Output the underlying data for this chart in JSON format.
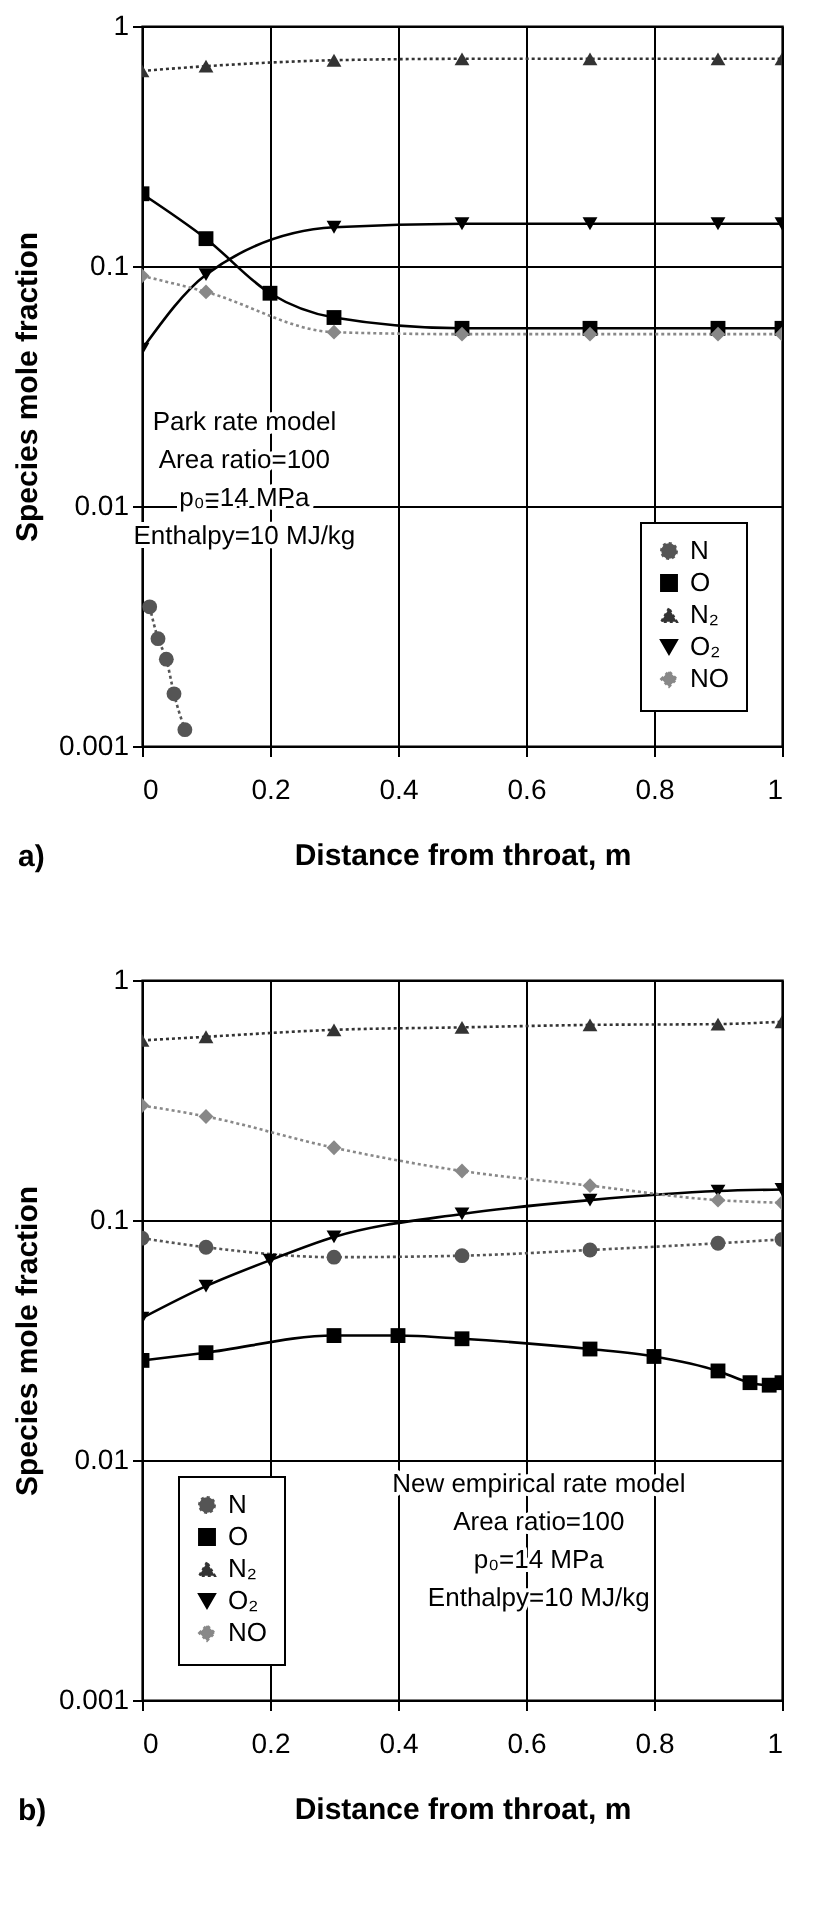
{
  "chart_data": [
    {
      "type": "line",
      "xlabel": "Distance from throat, m",
      "ylabel": "Species mole fraction",
      "log": "y",
      "grid": true,
      "legend": "bottom right",
      "xlim": [
        0,
        1
      ],
      "xticks": [
        0,
        0.2,
        0.4,
        0.6,
        0.8,
        1
      ],
      "ylim": [
        0.001,
        1
      ],
      "yticks": [
        0.001,
        0.01,
        0.1,
        1
      ],
      "annotations": [
        "Park rate model",
        "Area ratio=100",
        "p₀=14 MPa",
        "Enthalpy=10 MJ/kg",
        "a)"
      ],
      "series": [
        {
          "name": "N",
          "color": "#555555",
          "marker": "circle",
          "line_style": "dotted",
          "x": [
            0.012,
            0.025,
            0.038,
            0.05,
            0.067
          ],
          "values": [
            0.0038,
            0.0028,
            0.0023,
            0.00165,
            0.00117
          ]
        },
        {
          "name": "O",
          "color": "#000000",
          "marker": "square",
          "line_style": "solid",
          "x": [
            0,
            0.1,
            0.2,
            0.3,
            0.5,
            0.7,
            0.9,
            1
          ],
          "values": [
            0.2,
            0.13,
            0.077,
            0.061,
            0.055,
            0.055,
            0.055,
            0.055
          ]
        },
        {
          "name": "N₂",
          "color": "#333333",
          "marker": "triangle",
          "line_style": "dotted",
          "x": [
            0,
            0.1,
            0.3,
            0.5,
            0.7,
            0.9,
            1
          ],
          "values": [
            0.65,
            0.68,
            0.72,
            0.73,
            0.73,
            0.73,
            0.73
          ]
        },
        {
          "name": "O₂",
          "color": "#000000",
          "marker": "triangle-down",
          "line_style": "solid",
          "x": [
            0,
            0.1,
            0.3,
            0.5,
            0.7,
            0.9,
            1
          ],
          "values": [
            0.045,
            0.092,
            0.145,
            0.15,
            0.15,
            0.15,
            0.15
          ]
        },
        {
          "name": "NO",
          "color": "#888888",
          "marker": "diamond",
          "line_style": "dotted",
          "x": [
            0,
            0.1,
            0.3,
            0.5,
            0.7,
            0.9,
            1
          ],
          "values": [
            0.091,
            0.078,
            0.053,
            0.052,
            0.052,
            0.052,
            0.052
          ]
        }
      ]
    },
    {
      "type": "line",
      "xlabel": "Distance from throat, m",
      "ylabel": "Species mole fraction",
      "log": "y",
      "grid": true,
      "legend": "bottom left",
      "xlim": [
        0,
        1
      ],
      "xticks": [
        0,
        0.2,
        0.4,
        0.6,
        0.8,
        1
      ],
      "ylim": [
        0.001,
        1
      ],
      "yticks": [
        0.001,
        0.01,
        0.1,
        1
      ],
      "annotations": [
        "New empirical rate model",
        "Area ratio=100",
        "p₀=14 MPa",
        "Enthalpy=10 MJ/kg",
        "b)"
      ],
      "series": [
        {
          "name": "N",
          "color": "#555555",
          "marker": "circle",
          "line_style": "dotted",
          "x": [
            0,
            0.1,
            0.3,
            0.5,
            0.7,
            0.9,
            1
          ],
          "values": [
            0.084,
            0.077,
            0.07,
            0.071,
            0.075,
            0.08,
            0.083
          ]
        },
        {
          "name": "O",
          "color": "#000000",
          "marker": "square",
          "line_style": "solid",
          "x": [
            0,
            0.1,
            0.3,
            0.4,
            0.5,
            0.7,
            0.8,
            0.9,
            0.95,
            0.98,
            1
          ],
          "values": [
            0.026,
            0.028,
            0.033,
            0.033,
            0.032,
            0.029,
            0.027,
            0.0235,
            0.021,
            0.0205,
            0.021
          ]
        },
        {
          "name": "N₂",
          "color": "#333333",
          "marker": "triangle",
          "line_style": "dotted",
          "x": [
            0,
            0.1,
            0.3,
            0.5,
            0.7,
            0.9,
            1
          ],
          "values": [
            0.56,
            0.58,
            0.62,
            0.635,
            0.65,
            0.655,
            0.67
          ]
        },
        {
          "name": "O₂",
          "color": "#000000",
          "marker": "triangle-down",
          "line_style": "solid",
          "x": [
            0,
            0.1,
            0.2,
            0.3,
            0.5,
            0.7,
            0.9,
            1
          ],
          "values": [
            0.039,
            0.053,
            0.068,
            0.085,
            0.106,
            0.121,
            0.132,
            0.134
          ]
        },
        {
          "name": "NO",
          "color": "#888888",
          "marker": "diamond",
          "line_style": "dotted",
          "x": [
            0,
            0.1,
            0.3,
            0.5,
            0.7,
            0.9,
            1
          ],
          "values": [
            0.3,
            0.27,
            0.2,
            0.16,
            0.139,
            0.121,
            0.118
          ]
        }
      ]
    }
  ]
}
